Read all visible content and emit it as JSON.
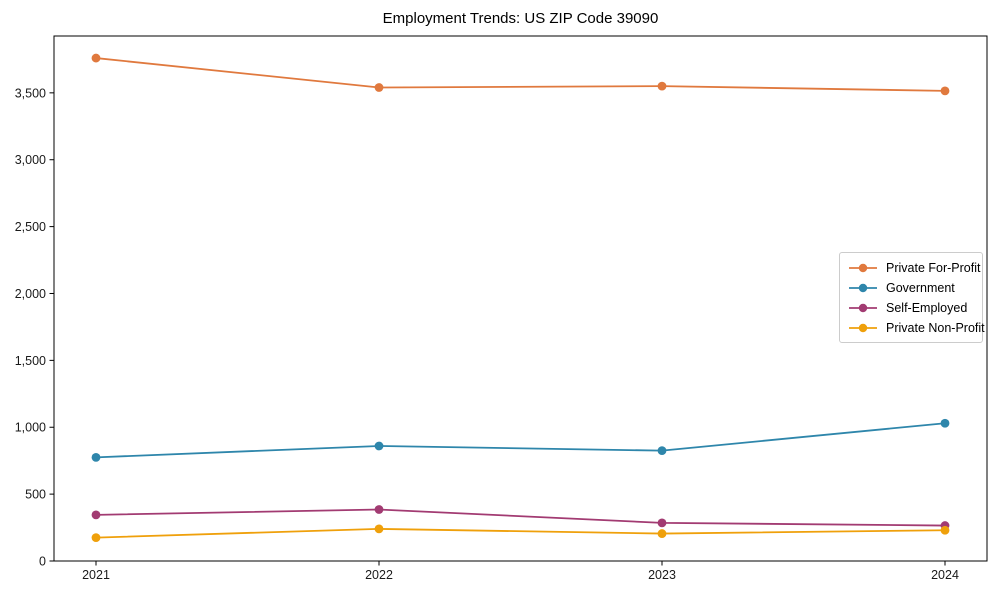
{
  "figure": {
    "background": "#ffffff",
    "axis_color": "#000000",
    "legend_border_color": "#cccccc"
  },
  "chart_data": {
    "type": "line",
    "title": "Employment Trends: US ZIP Code 39090",
    "xlabel": "",
    "ylabel": "",
    "categories": [
      "2021",
      "2022",
      "2023",
      "2024"
    ],
    "series": [
      {
        "name": "Private For-Profit",
        "color": "#E0793E",
        "values": [
          3760,
          3540,
          3550,
          3515
        ]
      },
      {
        "name": "Government",
        "color": "#2E86AB",
        "values": [
          775,
          860,
          825,
          1030
        ]
      },
      {
        "name": "Self-Employed",
        "color": "#A23B72",
        "values": [
          345,
          385,
          285,
          265
        ]
      },
      {
        "name": "Private Non-Profit",
        "color": "#EFA00B",
        "values": [
          175,
          240,
          205,
          230
        ]
      }
    ],
    "ylim": [
      0,
      3925
    ],
    "yticks": {
      "values": [
        0,
        500,
        1000,
        1500,
        2000,
        2500,
        3000,
        3500
      ],
      "labels": [
        "0",
        "500",
        "1,000",
        "1,500",
        "2,000",
        "2,500",
        "3,000",
        "3,500"
      ]
    },
    "grid": false,
    "marker": "circle",
    "legend_position": "right-middle"
  }
}
